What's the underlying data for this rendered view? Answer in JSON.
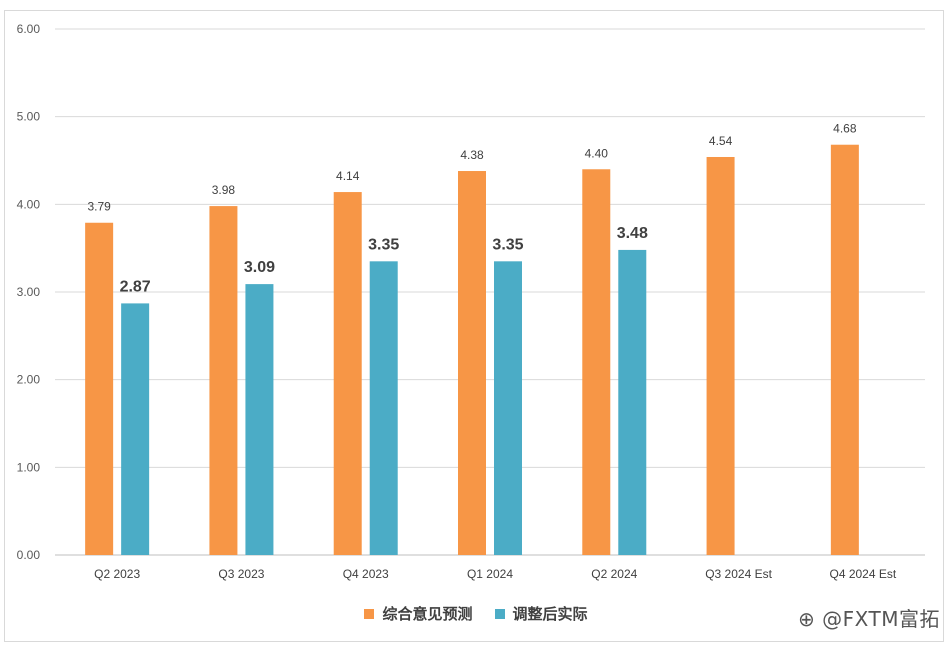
{
  "chart_data": {
    "type": "bar",
    "categories": [
      "Q2 2023",
      "Q3 2023",
      "Q4 2023",
      "Q1 2024",
      "Q2 2024",
      "Q3 2024 Est",
      "Q4 2024 Est"
    ],
    "series": [
      {
        "name": "综合意见预测",
        "color": "#F79646",
        "values": [
          3.79,
          3.98,
          4.14,
          4.38,
          4.4,
          4.54,
          4.68
        ],
        "labels": [
          "3.79",
          "3.98",
          "4.14",
          "4.38",
          "4.40",
          "4.54",
          "4.68"
        ]
      },
      {
        "name": "调整后实际",
        "color": "#4BACC6",
        "values": [
          2.87,
          3.09,
          3.35,
          3.35,
          3.48,
          null,
          null
        ],
        "labels": [
          "2.87",
          "3.09",
          "3.35",
          "3.35",
          "3.48",
          null,
          null
        ]
      }
    ],
    "yticks": [
      "0.00",
      "1.00",
      "2.00",
      "3.00",
      "4.00",
      "5.00",
      "6.00"
    ],
    "ylim": [
      0,
      6
    ],
    "grid": true,
    "legend_position": "bottom"
  },
  "watermark": "@FXTM富拓",
  "watermark_icon": "zhihu-logo-icon"
}
